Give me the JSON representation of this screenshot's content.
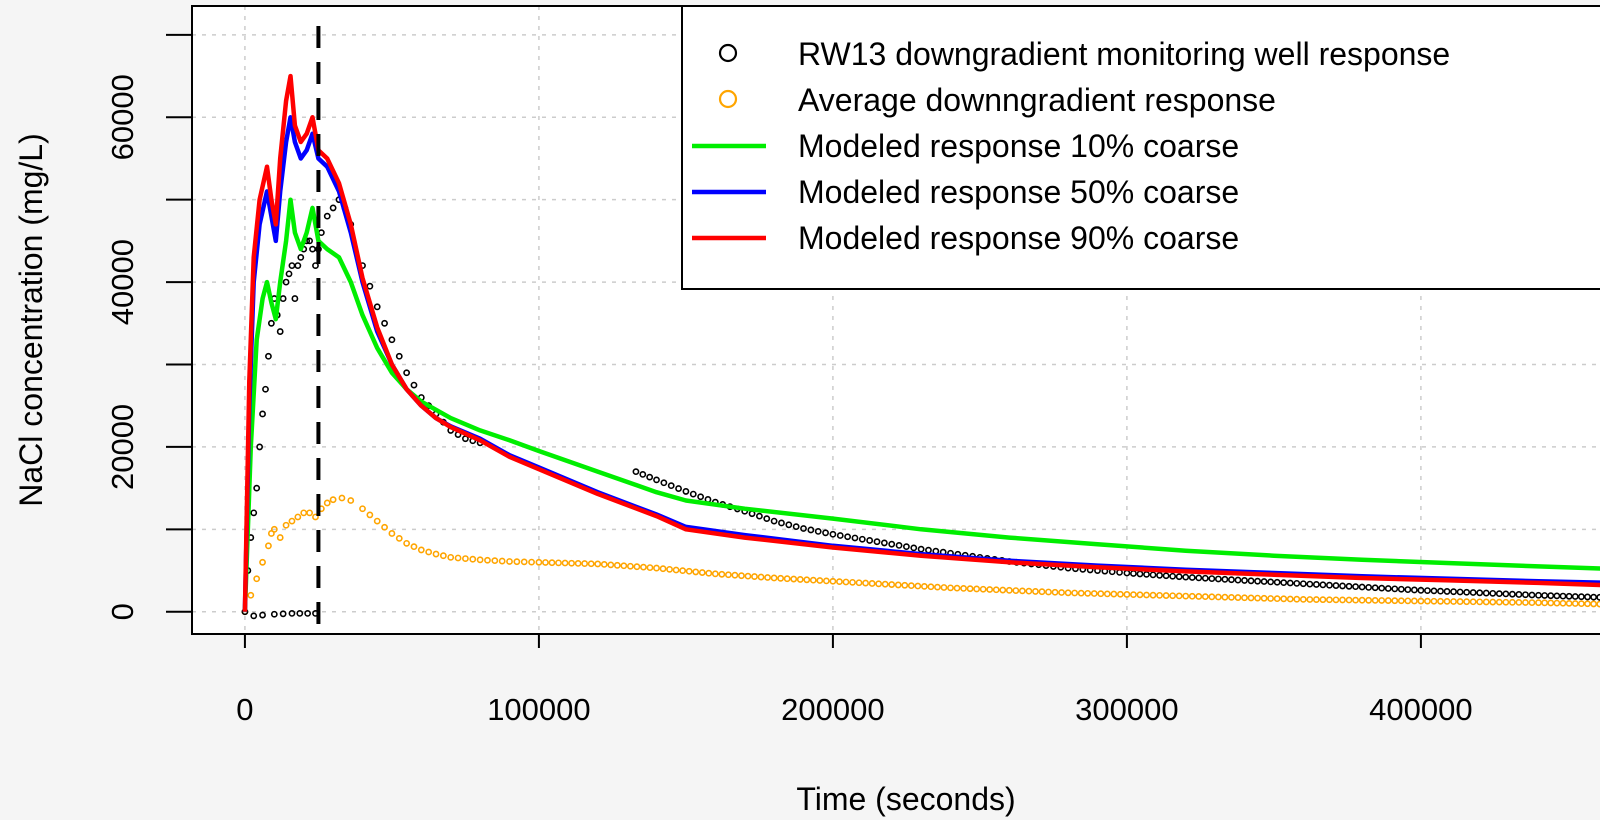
{
  "chart_data": {
    "type": "scatter",
    "xlabel": "Time (seconds)",
    "ylabel": "NaCl concentration (mg/L)",
    "x_ticks": [
      "0",
      "100000",
      "200000",
      "300000",
      "400000"
    ],
    "y_ticks": [
      "0",
      "20000",
      "40000",
      "60000"
    ],
    "xlim": [
      -18000,
      465000
    ],
    "ylim": [
      -2700,
      73500
    ],
    "grid": true,
    "legend_position": "top-right",
    "vline_x": 25000,
    "colors": {
      "observed": "#000000",
      "average": "#FFA500",
      "coarse10": "#00EE00",
      "coarse50": "#0000FF",
      "coarse90": "#FF0000"
    },
    "series": [
      {
        "name": "RW13 downgradient monitoring well response",
        "marker": "circle",
        "color": "#000000",
        "points": [
          [
            0,
            0
          ],
          [
            1000,
            5000
          ],
          [
            2000,
            9000
          ],
          [
            3000,
            12000
          ],
          [
            4000,
            15000
          ],
          [
            5000,
            20000
          ],
          [
            6000,
            24000
          ],
          [
            7000,
            27000
          ],
          [
            8000,
            31000
          ],
          [
            9000,
            35000
          ],
          [
            10000,
            38000
          ],
          [
            11000,
            36000
          ],
          [
            12000,
            34000
          ],
          [
            13000,
            38000
          ],
          [
            14000,
            40000
          ],
          [
            15000,
            41000
          ],
          [
            16000,
            42000
          ],
          [
            17000,
            38000
          ],
          [
            18000,
            42000
          ],
          [
            19000,
            43000
          ],
          [
            20000,
            44000
          ],
          [
            21000,
            45000
          ],
          [
            22000,
            45000
          ],
          [
            23000,
            44000
          ],
          [
            24000,
            42000
          ],
          [
            25000,
            44000
          ],
          [
            26000,
            46000
          ],
          [
            28000,
            48000
          ],
          [
            30000,
            49000
          ],
          [
            32000,
            50000
          ],
          [
            34000,
            49000
          ],
          [
            36000,
            47000
          ],
          [
            40000,
            42000
          ],
          [
            45000,
            37000
          ],
          [
            50000,
            33000
          ],
          [
            55000,
            29000
          ],
          [
            60000,
            26000
          ],
          [
            65000,
            24000
          ],
          [
            70000,
            22000
          ],
          [
            75000,
            21000
          ],
          [
            80000,
            20500
          ],
          [
            133000,
            17000
          ],
          [
            140000,
            16000
          ],
          [
            150000,
            14600
          ],
          [
            160000,
            13300
          ],
          [
            170000,
            12200
          ],
          [
            180000,
            11000
          ],
          [
            190000,
            10100
          ],
          [
            200000,
            9400
          ],
          [
            210000,
            8800
          ],
          [
            220000,
            8200
          ],
          [
            230000,
            7600
          ],
          [
            240000,
            7100
          ],
          [
            250000,
            6600
          ],
          [
            260000,
            6100
          ],
          [
            270000,
            5700
          ],
          [
            280000,
            5300
          ],
          [
            290000,
            5000
          ],
          [
            300000,
            4700
          ],
          [
            320000,
            4200
          ],
          [
            340000,
            3800
          ],
          [
            360000,
            3400
          ],
          [
            380000,
            3000
          ],
          [
            400000,
            2600
          ],
          [
            420000,
            2300
          ],
          [
            440000,
            2000
          ],
          [
            465000,
            1700
          ],
          [
            3000,
            -500
          ],
          [
            6000,
            -400
          ],
          [
            10000,
            -300
          ],
          [
            16000,
            -200
          ],
          [
            24000,
            -200
          ]
        ]
      },
      {
        "name": "Average downngradient response",
        "marker": "circle",
        "color": "#FFA500",
        "points": [
          [
            0,
            0
          ],
          [
            2000,
            2000
          ],
          [
            4000,
            4000
          ],
          [
            6000,
            6000
          ],
          [
            8000,
            8000
          ],
          [
            9000,
            9500
          ],
          [
            10000,
            10000
          ],
          [
            12000,
            9000
          ],
          [
            14000,
            10500
          ],
          [
            16000,
            11000
          ],
          [
            18000,
            11500
          ],
          [
            20000,
            12000
          ],
          [
            22000,
            12000
          ],
          [
            24000,
            11500
          ],
          [
            26000,
            12500
          ],
          [
            28000,
            13200
          ],
          [
            30000,
            13600
          ],
          [
            33000,
            13800
          ],
          [
            36000,
            13500
          ],
          [
            40000,
            12500
          ],
          [
            45000,
            11000
          ],
          [
            50000,
            9500
          ],
          [
            55000,
            8300
          ],
          [
            60000,
            7500
          ],
          [
            65000,
            7000
          ],
          [
            70000,
            6600
          ],
          [
            80000,
            6300
          ],
          [
            90000,
            6100
          ],
          [
            100000,
            6000
          ],
          [
            120000,
            5800
          ],
          [
            140000,
            5300
          ],
          [
            160000,
            4600
          ],
          [
            180000,
            4100
          ],
          [
            200000,
            3700
          ],
          [
            220000,
            3300
          ],
          [
            240000,
            2900
          ],
          [
            260000,
            2600
          ],
          [
            280000,
            2300
          ],
          [
            300000,
            2100
          ],
          [
            320000,
            1900
          ],
          [
            340000,
            1700
          ],
          [
            360000,
            1500
          ],
          [
            380000,
            1400
          ],
          [
            400000,
            1300
          ],
          [
            420000,
            1200
          ],
          [
            440000,
            1100
          ],
          [
            465000,
            900
          ]
        ]
      },
      {
        "name": "Modeled response 10% coarse",
        "marker": "line",
        "color": "#00EE00",
        "points": [
          [
            0,
            0
          ],
          [
            2000,
            20000
          ],
          [
            4000,
            33000
          ],
          [
            6000,
            38000
          ],
          [
            7500,
            40000
          ],
          [
            9000,
            37500
          ],
          [
            10500,
            35500
          ],
          [
            12000,
            40000
          ],
          [
            14000,
            45000
          ],
          [
            15500,
            50000
          ],
          [
            17000,
            46000
          ],
          [
            19000,
            44000
          ],
          [
            21000,
            46000
          ],
          [
            23000,
            49000
          ],
          [
            25000,
            45000
          ],
          [
            28000,
            44000
          ],
          [
            32000,
            43000
          ],
          [
            36000,
            40000
          ],
          [
            40000,
            36000
          ],
          [
            45000,
            32000
          ],
          [
            50000,
            29000
          ],
          [
            55000,
            27000
          ],
          [
            60000,
            25500
          ],
          [
            65000,
            24500
          ],
          [
            70000,
            23500
          ],
          [
            80000,
            22000
          ],
          [
            90000,
            20800
          ],
          [
            100000,
            19500
          ],
          [
            120000,
            17000
          ],
          [
            140000,
            14500
          ],
          [
            150000,
            13500
          ],
          [
            170000,
            12500
          ],
          [
            200000,
            11300
          ],
          [
            230000,
            10000
          ],
          [
            260000,
            9000
          ],
          [
            290000,
            8200
          ],
          [
            320000,
            7400
          ],
          [
            350000,
            6800
          ],
          [
            380000,
            6300
          ],
          [
            410000,
            5900
          ],
          [
            440000,
            5500
          ],
          [
            465000,
            5200
          ]
        ]
      },
      {
        "name": "Modeled response 50% coarse",
        "marker": "line",
        "color": "#0000FF",
        "points": [
          [
            0,
            0
          ],
          [
            1500,
            25000
          ],
          [
            3000,
            40000
          ],
          [
            5000,
            47000
          ],
          [
            7500,
            51000
          ],
          [
            9000,
            48000
          ],
          [
            10500,
            45000
          ],
          [
            12000,
            51000
          ],
          [
            14000,
            57000
          ],
          [
            15500,
            60000
          ],
          [
            17000,
            57000
          ],
          [
            19000,
            55000
          ],
          [
            21000,
            56000
          ],
          [
            23000,
            58000
          ],
          [
            25000,
            55000
          ],
          [
            28000,
            54000
          ],
          [
            32000,
            51000
          ],
          [
            36000,
            46000
          ],
          [
            40000,
            40000
          ],
          [
            45000,
            34000
          ],
          [
            50000,
            30000
          ],
          [
            55000,
            27000
          ],
          [
            60000,
            25000
          ],
          [
            65000,
            23500
          ],
          [
            70000,
            22500
          ],
          [
            80000,
            21000
          ],
          [
            90000,
            19000
          ],
          [
            100000,
            17500
          ],
          [
            120000,
            14500
          ],
          [
            140000,
            11800
          ],
          [
            150000,
            10300
          ],
          [
            170000,
            9300
          ],
          [
            200000,
            8000
          ],
          [
            230000,
            7000
          ],
          [
            260000,
            6200
          ],
          [
            290000,
            5600
          ],
          [
            320000,
            5100
          ],
          [
            350000,
            4700
          ],
          [
            380000,
            4300
          ],
          [
            410000,
            4000
          ],
          [
            440000,
            3700
          ],
          [
            465000,
            3500
          ]
        ]
      },
      {
        "name": "Modeled response 90% coarse",
        "marker": "line",
        "color": "#FF0000",
        "points": [
          [
            0,
            0
          ],
          [
            1500,
            28000
          ],
          [
            3000,
            43000
          ],
          [
            5000,
            50000
          ],
          [
            7500,
            54000
          ],
          [
            9000,
            50000
          ],
          [
            10500,
            47000
          ],
          [
            12000,
            55000
          ],
          [
            14000,
            62000
          ],
          [
            15500,
            65000
          ],
          [
            17000,
            59000
          ],
          [
            19000,
            57000
          ],
          [
            21000,
            58000
          ],
          [
            23000,
            60000
          ],
          [
            25000,
            56000
          ],
          [
            28000,
            55000
          ],
          [
            32000,
            52000
          ],
          [
            36000,
            47000
          ],
          [
            40000,
            40500
          ],
          [
            45000,
            34500
          ],
          [
            50000,
            30000
          ],
          [
            55000,
            27000
          ],
          [
            60000,
            25000
          ],
          [
            65000,
            23500
          ],
          [
            70000,
            22400
          ],
          [
            80000,
            20800
          ],
          [
            90000,
            18800
          ],
          [
            100000,
            17300
          ],
          [
            120000,
            14300
          ],
          [
            140000,
            11600
          ],
          [
            150000,
            10000
          ],
          [
            170000,
            9000
          ],
          [
            200000,
            7800
          ],
          [
            230000,
            6800
          ],
          [
            260000,
            6000
          ],
          [
            290000,
            5400
          ],
          [
            320000,
            4900
          ],
          [
            350000,
            4500
          ],
          [
            380000,
            4100
          ],
          [
            410000,
            3800
          ],
          [
            440000,
            3500
          ],
          [
            465000,
            3200
          ]
        ]
      }
    ]
  }
}
